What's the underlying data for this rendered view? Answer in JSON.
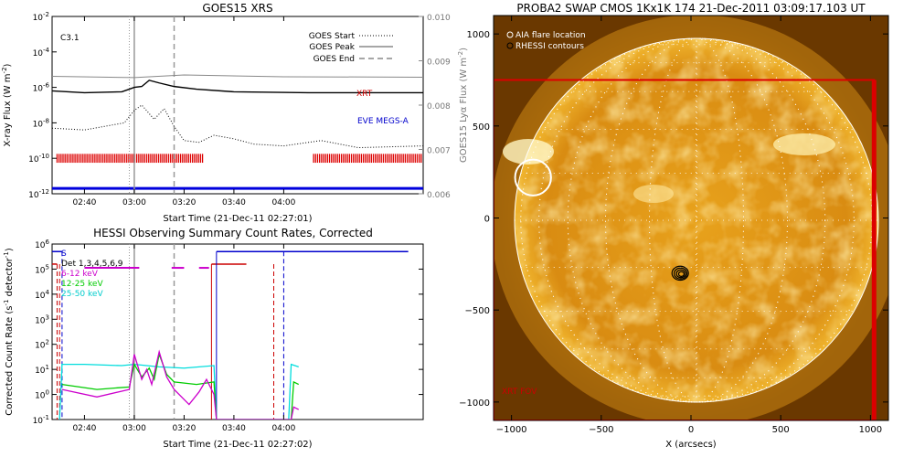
{
  "chart_data": [
    {
      "type": "line",
      "title": "GOES15 XRS",
      "xlabel": "Start Time (21-Dec-11 02:27:01)",
      "ylabel": "X-ray Flux (W m^-2)",
      "ylabel_parts": [
        "X-ray Flux (W m",
        "-2",
        ")"
      ],
      "y2label": "GOES15 Lyα Flux (W m^-2)",
      "y2label_parts": [
        "GOES15 Lyα Flux (W m",
        "-2",
        ")"
      ],
      "xlim_minutes": [
        27,
        176
      ],
      "ylim_log": [
        -12,
        -2
      ],
      "y2lim": [
        0.006,
        0.01
      ],
      "x_ticks": [
        {
          "t": 40,
          "label": "02:40"
        },
        {
          "t": 60,
          "label": "03:00"
        },
        {
          "t": 80,
          "label": "03:20"
        },
        {
          "t": 100,
          "label": "03:40"
        },
        {
          "t": 120,
          "label": "04:00"
        }
      ],
      "y_ticks": [
        {
          "v": -2,
          "base": "10",
          "exp": "-2"
        },
        {
          "v": -4,
          "base": "10",
          "exp": "-4"
        },
        {
          "v": -6,
          "base": "10",
          "exp": "-6"
        },
        {
          "v": -8,
          "base": "10",
          "exp": "-8"
        },
        {
          "v": -10,
          "base": "10",
          "exp": "-10"
        },
        {
          "v": -12,
          "base": "10",
          "exp": "-12"
        }
      ],
      "y2_ticks": [
        "0.010",
        "0.009",
        "0.008",
        "0.007",
        "0.006"
      ],
      "class_label": "C3.1",
      "legend": [
        {
          "label": "GOES Start",
          "style": "dotted"
        },
        {
          "label": "GOES Peak",
          "style": "solid"
        },
        {
          "label": "GOES End",
          "style": "dashed"
        }
      ],
      "event_lines": {
        "start": 58,
        "peak": 60,
        "end": 76
      },
      "instrument_labels": {
        "xrt": "XRT",
        "eve": "EVE MEGS-A"
      },
      "series": [
        {
          "name": "XRS long (log10 flux)",
          "color": "#000000",
          "points": [
            [
              27,
              -6.2
            ],
            [
              40,
              -6.3
            ],
            [
              55,
              -6.25
            ],
            [
              58,
              -6.1
            ],
            [
              60,
              -6.0
            ],
            [
              63,
              -5.95
            ],
            [
              66,
              -5.6
            ],
            [
              70,
              -5.75
            ],
            [
              76,
              -5.95
            ],
            [
              85,
              -6.1
            ],
            [
              100,
              -6.25
            ],
            [
              130,
              -6.3
            ],
            [
              176,
              -6.3
            ]
          ]
        },
        {
          "name": "XRS short (log10 flux)",
          "color": "#000000",
          "style": "dotted",
          "points": [
            [
              27,
              -8.3
            ],
            [
              40,
              -8.4
            ],
            [
              56,
              -8.0
            ],
            [
              60,
              -7.3
            ],
            [
              63,
              -7.0
            ],
            [
              68,
              -7.8
            ],
            [
              72,
              -7.2
            ],
            [
              76,
              -8.2
            ],
            [
              80,
              -9.0
            ],
            [
              86,
              -9.1
            ],
            [
              92,
              -8.7
            ],
            [
              100,
              -8.9
            ],
            [
              108,
              -9.2
            ],
            [
              120,
              -9.3
            ],
            [
              135,
              -9.0
            ],
            [
              150,
              -9.4
            ],
            [
              176,
              -9.3
            ]
          ]
        },
        {
          "name": "Lyα (W m^-2)",
          "color": "#888888",
          "points": [
            [
              27,
              0.00865
            ],
            [
              60,
              0.00862
            ],
            [
              80,
              0.00868
            ],
            [
              120,
              0.00864
            ],
            [
              176,
              0.00863
            ]
          ]
        }
      ],
      "xrt_coverage_minutes": [
        [
          29,
          88
        ],
        [
          132,
          176
        ]
      ],
      "eve_line_log": -11.7
    },
    {
      "type": "line",
      "title": "HESSI Observing Summary Count Rates, Corrected",
      "xlabel": "Start Time (21-Dec-11 02:27:02)",
      "ylabel": "Corrected Count Rate (s^-1 detector^-1)",
      "ylabel_parts": [
        "Corrected Count Rate (s",
        "-1",
        " detector",
        "-1",
        ")"
      ],
      "xlim_minutes": [
        27,
        176
      ],
      "ylim_log": [
        -1,
        6
      ],
      "x_ticks": [
        {
          "t": 40,
          "label": "02:40"
        },
        {
          "t": 60,
          "label": "03:00"
        },
        {
          "t": 80,
          "label": "03:20"
        },
        {
          "t": 100,
          "label": "03:40"
        },
        {
          "t": 120,
          "label": "04:00"
        }
      ],
      "y_ticks": [
        {
          "v": -1,
          "base": "10",
          "exp": "-1"
        },
        {
          "v": 0,
          "base": "10",
          "exp": "0"
        },
        {
          "v": 1,
          "base": "10",
          "exp": "1"
        },
        {
          "v": 2,
          "base": "10",
          "exp": "2"
        },
        {
          "v": 3,
          "base": "10",
          "exp": "3"
        },
        {
          "v": 4,
          "base": "10",
          "exp": "4"
        },
        {
          "v": 5,
          "base": "10",
          "exp": "5"
        },
        {
          "v": 6,
          "base": "10",
          "exp": "6"
        }
      ],
      "legend": [
        {
          "label": "S",
          "color": "#0000cc"
        },
        {
          "label": "Det 1,3,4,5,6,9",
          "color": "#000000"
        },
        {
          "label": "6-12 keV",
          "color": "#cc00cc"
        },
        {
          "label": "12-25 keV",
          "color": "#00cc00"
        },
        {
          "label": "25-50 keV",
          "color": "#00dddd"
        }
      ],
      "event_lines": {
        "start": 58,
        "peak": 60,
        "end": 76
      },
      "night_marks": {
        "red_solid": [
          91,
          105
        ],
        "blue_solid": [
          93,
          170
        ],
        "red_dashed": [
          29,
          30,
          116
        ],
        "blue_dashed": [
          31,
          120
        ]
      },
      "series": [
        {
          "name": "25-50 keV",
          "color": "#00dddd",
          "points": [
            [
              30,
              -1
            ],
            [
              31,
              1.2
            ],
            [
              40,
              1.2
            ],
            [
              55,
              1.15
            ],
            [
              60,
              1.2
            ],
            [
              70,
              1.1
            ],
            [
              80,
              1.05
            ],
            [
              92,
              1.15
            ],
            [
              93,
              -1
            ],
            [
              122,
              -1
            ],
            [
              123,
              1.2
            ],
            [
              126,
              1.1
            ]
          ]
        },
        {
          "name": "12-25 keV",
          "color": "#00cc00",
          "points": [
            [
              31,
              0.4
            ],
            [
              45,
              0.2
            ],
            [
              58,
              0.3
            ],
            [
              60,
              1.2
            ],
            [
              63,
              0.7
            ],
            [
              66,
              1.05
            ],
            [
              68,
              0.6
            ],
            [
              70,
              1.6
            ],
            [
              73,
              0.8
            ],
            [
              76,
              0.5
            ],
            [
              85,
              0.4
            ],
            [
              92,
              0.5
            ],
            [
              93,
              -1
            ],
            [
              123,
              -1
            ],
            [
              124,
              0.5
            ],
            [
              126,
              0.4
            ]
          ]
        },
        {
          "name": "6-12 keV",
          "color": "#cc00cc",
          "points": [
            [
              31,
              0.2
            ],
            [
              45,
              -0.1
            ],
            [
              58,
              0.2
            ],
            [
              60,
              1.6
            ],
            [
              63,
              0.6
            ],
            [
              65,
              1.0
            ],
            [
              67,
              0.4
            ],
            [
              70,
              1.7
            ],
            [
              73,
              0.7
            ],
            [
              76,
              0.2
            ],
            [
              82,
              -0.4
            ],
            [
              86,
              0.1
            ],
            [
              89,
              0.6
            ],
            [
              92,
              0.0
            ],
            [
              93,
              -1
            ],
            [
              123,
              -1
            ],
            [
              124,
              -0.5
            ],
            [
              126,
              -0.6
            ]
          ]
        }
      ]
    },
    {
      "type": "heatmap",
      "title": "PROBA2 SWAP CMOS 1Kx1K 174 21-Dec-2011 03:09:17.103 UT",
      "xlabel": "X (arcsecs)",
      "xlim": [
        -1100,
        1100
      ],
      "ylim": [
        -1100,
        1100
      ],
      "x_ticks": [
        -1000,
        -500,
        0,
        500,
        1000
      ],
      "y_ticks": [
        1000,
        500,
        0,
        -500,
        -1000
      ],
      "solar_radius_arcsec": 975,
      "legend": [
        {
          "label": "AIA flare location",
          "color": "#ffffff"
        },
        {
          "label": "RHESSI contours",
          "color": "#000000"
        }
      ],
      "aia_flare": {
        "x": -880,
        "y": 220,
        "r": 100
      },
      "rhessi_source": {
        "x": -60,
        "y": -300
      },
      "xrt_fov": {
        "x0": -1100,
        "x1": 1020,
        "y0": -1100,
        "y1": 750
      },
      "xrt_label": "XRT FOV"
    }
  ]
}
